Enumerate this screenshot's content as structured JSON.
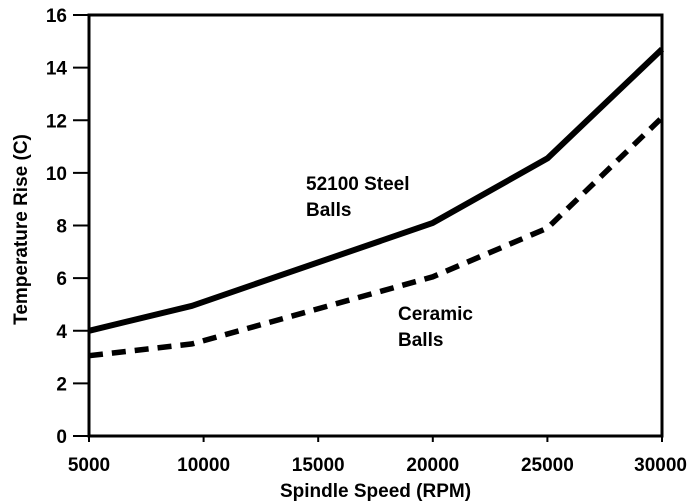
{
  "chart_data": {
    "type": "line",
    "title": "",
    "xlabel": "Spindle Speed (RPM)",
    "ylabel": "Temperature Rise (C)",
    "xlim": [
      5000,
      30000
    ],
    "ylim": [
      0,
      16
    ],
    "xticks": [
      5000,
      10000,
      15000,
      20000,
      25000,
      30000
    ],
    "yticks": [
      0,
      2,
      4,
      6,
      8,
      10,
      12,
      14,
      16
    ],
    "grid": false,
    "series": [
      {
        "name": "52100 Steel Balls",
        "label_lines": [
          "52100 Steel",
          "Balls"
        ],
        "style": "solid",
        "color": "#000000",
        "x": [
          5000,
          9500,
          20000,
          25000,
          30000
        ],
        "y": [
          4.0,
          4.95,
          8.1,
          10.55,
          14.7
        ]
      },
      {
        "name": "Ceramic Balls",
        "label_lines": [
          "Ceramic",
          "Balls"
        ],
        "style": "dashed",
        "color": "#000000",
        "x": [
          5000,
          9500,
          20000,
          25000,
          30000
        ],
        "y": [
          3.05,
          3.5,
          6.05,
          7.9,
          12.1
        ]
      }
    ]
  }
}
